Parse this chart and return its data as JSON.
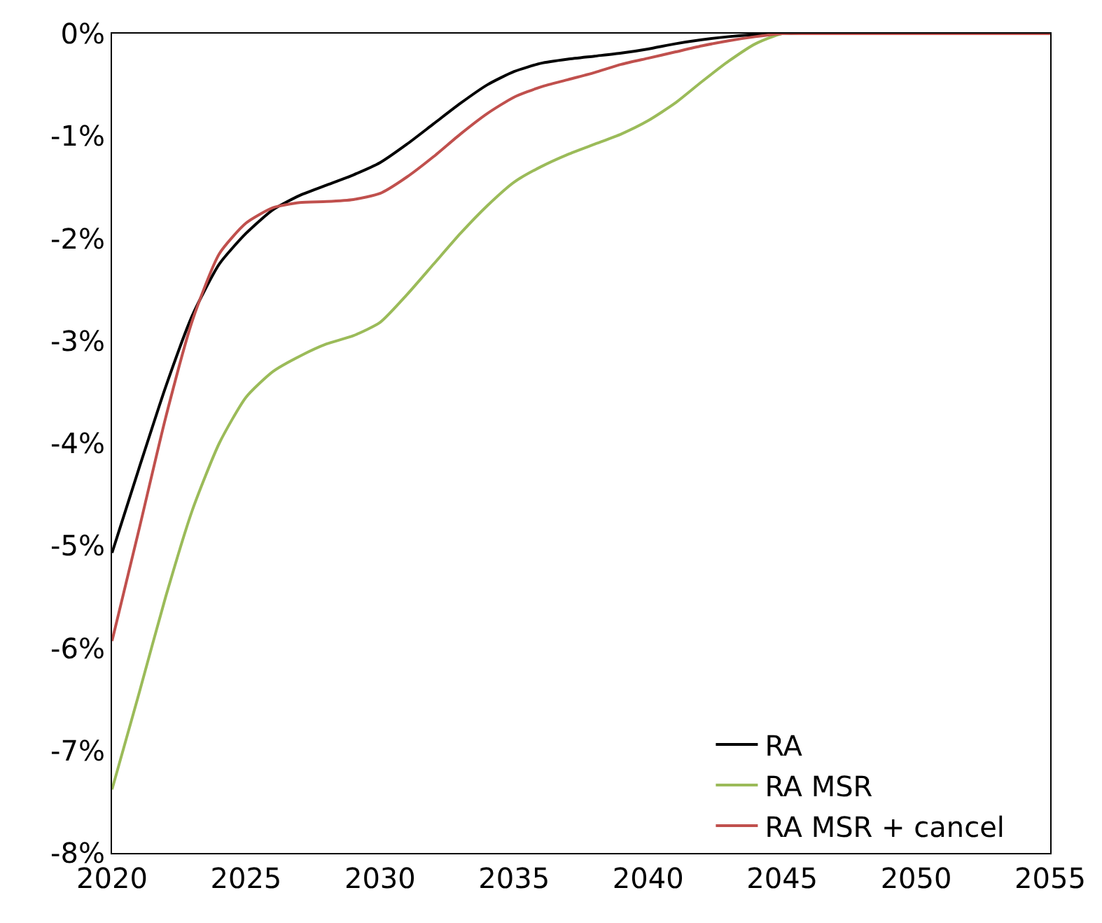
{
  "chart_data": {
    "type": "line",
    "x": [
      2020,
      2021,
      2022,
      2023,
      2024,
      2025,
      2026,
      2027,
      2028,
      2029,
      2030,
      2031,
      2032,
      2033,
      2034,
      2035,
      2036,
      2037,
      2038,
      2039,
      2040,
      2041,
      2042,
      2043,
      2044,
      2045,
      2046,
      2047,
      2048,
      2049,
      2050,
      2051,
      2052,
      2053,
      2054,
      2055
    ],
    "series": [
      {
        "name": "RA",
        "color": "#000000",
        "values": [
          -5.07,
          -4.25,
          -3.45,
          -2.75,
          -2.25,
          -1.95,
          -1.72,
          -1.58,
          -1.48,
          -1.38,
          -1.26,
          -1.08,
          -0.88,
          -0.68,
          -0.5,
          -0.37,
          -0.29,
          -0.25,
          -0.22,
          -0.19,
          -0.15,
          -0.1,
          -0.06,
          -0.03,
          -0.01,
          0,
          0,
          0,
          0,
          0,
          0,
          0,
          0,
          0,
          0,
          0
        ]
      },
      {
        "name": "RA MSR",
        "color": "#9bbb59",
        "values": [
          -7.38,
          -6.45,
          -5.5,
          -4.65,
          -4.0,
          -3.55,
          -3.3,
          -3.15,
          -3.03,
          -2.95,
          -2.82,
          -2.55,
          -2.25,
          -1.95,
          -1.68,
          -1.45,
          -1.3,
          -1.18,
          -1.08,
          -0.98,
          -0.85,
          -0.68,
          -0.47,
          -0.27,
          -0.1,
          0,
          0,
          null,
          null,
          null,
          null,
          null,
          null,
          null,
          null,
          null
        ]
      },
      {
        "name": "RA MSR + cancel",
        "color": "#c0504d",
        "values": [
          -5.93,
          -4.85,
          -3.75,
          -2.8,
          -2.15,
          -1.85,
          -1.7,
          -1.65,
          -1.64,
          -1.62,
          -1.56,
          -1.4,
          -1.2,
          -0.98,
          -0.78,
          -0.62,
          -0.52,
          -0.45,
          -0.38,
          -0.3,
          -0.24,
          -0.18,
          -0.12,
          -0.07,
          -0.03,
          0,
          0,
          0,
          0,
          0,
          0,
          0,
          0,
          0,
          0,
          0
        ]
      }
    ],
    "xlim": [
      2020,
      2055
    ],
    "xticks": [
      2020,
      2025,
      2030,
      2035,
      2040,
      2045,
      2050,
      2055
    ],
    "ylim": [
      -8,
      0
    ],
    "yticks": [
      {
        "value": 0,
        "label": "0%"
      },
      {
        "value": -1,
        "label": "-1%"
      },
      {
        "value": -2,
        "label": "-2%"
      },
      {
        "value": -3,
        "label": "-3%"
      },
      {
        "value": -4,
        "label": "-4%"
      },
      {
        "value": -5,
        "label": "-5%"
      },
      {
        "value": -6,
        "label": "-6%"
      },
      {
        "value": -7,
        "label": "-7%"
      },
      {
        "value": -8,
        "label": "-8%"
      }
    ],
    "legend": "bottom right",
    "marker": "none",
    "line_style": "solid"
  }
}
